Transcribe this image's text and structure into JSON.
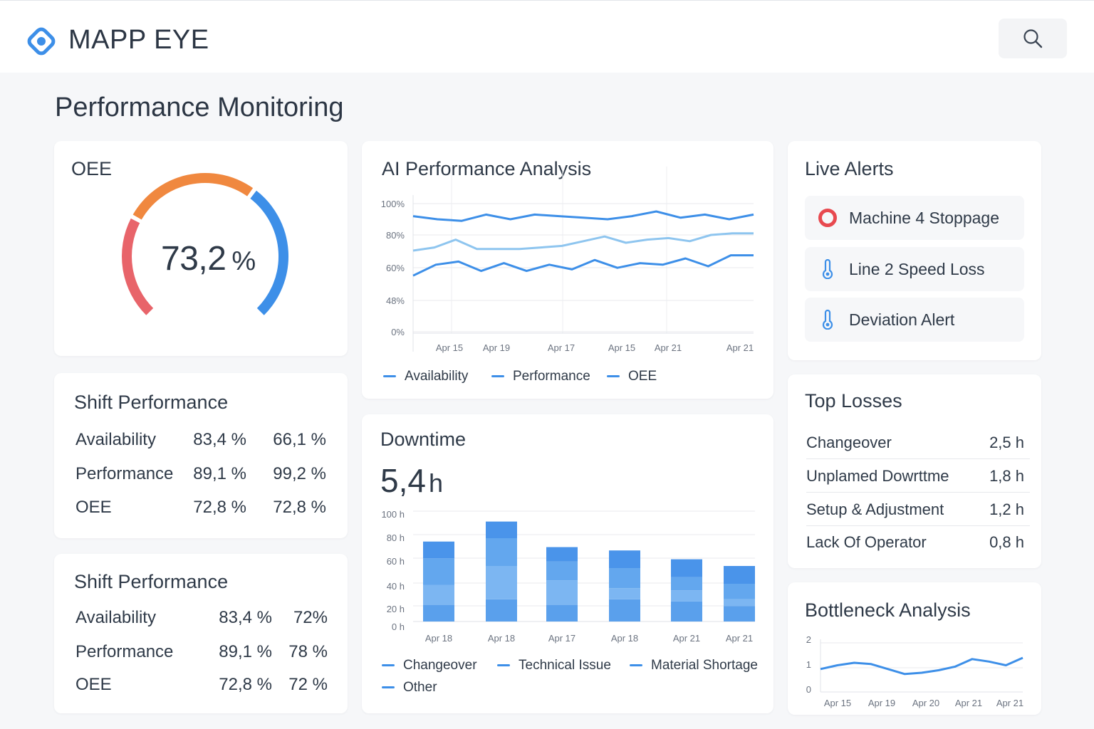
{
  "header": {
    "brand": "MAPP EYE",
    "logo_icon": "eye-target-icon",
    "search_icon": "search-icon"
  },
  "page": {
    "title": "Performance Monitoring"
  },
  "oee_card": {
    "title": "OEE",
    "value": "73,2",
    "unit": "%",
    "gauge_level_percent": 73.2,
    "segment_colors": [
      "#e8646a",
      "#f0883f",
      "#3d8fe8"
    ]
  },
  "shift_performance_1": {
    "title": "Shift Performance",
    "rows": [
      {
        "label": "Availability",
        "v1": "83,4 %",
        "v2": "66,1 %"
      },
      {
        "label": "Performance",
        "v1": "89,1 %",
        "v2": "99,2 %"
      },
      {
        "label": "OEE",
        "v1": "72,8 %",
        "v2": "72,8 %"
      }
    ]
  },
  "shift_performance_2": {
    "title": "Shift Performance",
    "rows": [
      {
        "label": "Availability",
        "v1": "83,4 %",
        "v2": "72%"
      },
      {
        "label": "Performance",
        "v1": "89,1 %",
        "v2": "78 %"
      },
      {
        "label": "OEE",
        "v1": "72,8 %",
        "v2": "72 %"
      }
    ]
  },
  "ai_analysis": {
    "title": "AI Performance Analysis",
    "legend": [
      "Availability",
      "Performance",
      "OEE"
    ],
    "chart_data": {
      "type": "line",
      "y_ticks": [
        "100%",
        "80%",
        "60%",
        "48%",
        "0%"
      ],
      "x_ticks": [
        "Apr 15",
        "Apr 19",
        "Apr 17",
        "Apr 15",
        "Apr 21",
        "Apr 21"
      ],
      "series": [
        {
          "name": "Availability",
          "color": "#3d8fe8",
          "values": [
            92,
            90,
            89,
            93,
            90,
            93,
            92,
            91,
            90,
            92,
            95,
            91,
            93,
            90,
            93
          ]
        },
        {
          "name": "Performance",
          "color": "#8ec5ef",
          "values": [
            70,
            72,
            77,
            71,
            71,
            71,
            72,
            73,
            76,
            79,
            75,
            77,
            78,
            76,
            80,
            81,
            81
          ]
        },
        {
          "name": "OEE",
          "color": "#3d8fe8",
          "values": [
            54,
            61,
            63,
            57,
            62,
            57,
            61,
            58,
            64,
            59,
            62,
            61,
            65,
            60,
            67,
            67
          ]
        }
      ]
    }
  },
  "downtime": {
    "title": "Downtime",
    "value": "5,4",
    "unit": "h",
    "legend": [
      "Changeover",
      "Technical Issue",
      "Material Shortage",
      "Other"
    ],
    "chart_data": {
      "type": "bar",
      "stacked": true,
      "categories": [
        "Apr 18",
        "Apr 18",
        "Apr 17",
        "Apr 18",
        "Apr 21",
        "Apr 21"
      ],
      "y_ticks": [
        "100 h",
        "80 h",
        "60 h",
        "40 h",
        "20 h",
        "0 h"
      ],
      "ylim": [
        0,
        100
      ],
      "series": [
        {
          "name": "Changeover",
          "color": "#5aa0ec",
          "values": [
            15,
            20,
            15,
            20,
            18,
            14
          ]
        },
        {
          "name": "Technical Issue",
          "color": "#7cb6f2",
          "values": [
            18,
            30,
            22,
            10,
            10,
            6
          ]
        },
        {
          "name": "Material Shortage",
          "color": "#63a7ee",
          "values": [
            24,
            25,
            17,
            18,
            12,
            14
          ]
        },
        {
          "name": "Other",
          "color": "#4a94ea",
          "values": [
            15,
            15,
            13,
            16,
            16,
            16
          ]
        }
      ]
    }
  },
  "live_alerts": {
    "title": "Live Alerts",
    "items": [
      {
        "label": "Machine 4 Stoppage",
        "icon": "stop-circle-icon",
        "color": "#e8494f"
      },
      {
        "label": "Line 2 Speed Loss",
        "icon": "thermometer-icon",
        "color": "#3d8fe8"
      },
      {
        "label": "Deviation Alert",
        "icon": "thermometer-icon",
        "color": "#3d8fe8"
      }
    ]
  },
  "top_losses": {
    "title": "Top Losses",
    "rows": [
      {
        "label": "Changeover",
        "value": "2,5 h"
      },
      {
        "label": "Unplamed Dowrttme",
        "value": "1,8 h"
      },
      {
        "label": "Setup & Adjustment",
        "value": "1,2 h"
      },
      {
        "label": "Lack Of Operator",
        "value": "0,8 h"
      }
    ]
  },
  "bottleneck": {
    "title": "Bottleneck Analysis",
    "chart_data": {
      "type": "line",
      "y_ticks": [
        "2",
        "1",
        "0"
      ],
      "ylim": [
        0,
        2
      ],
      "x_ticks": [
        "Apr 15",
        "Apr 19",
        "Apr 20",
        "Apr 21",
        "Apr 21"
      ],
      "series": [
        {
          "color": "#3d8fe8",
          "values": [
            0.95,
            1.1,
            1.2,
            1.15,
            0.95,
            0.75,
            0.8,
            0.9,
            1.05,
            1.35,
            1.25,
            1.1,
            1.4
          ]
        }
      ]
    }
  }
}
